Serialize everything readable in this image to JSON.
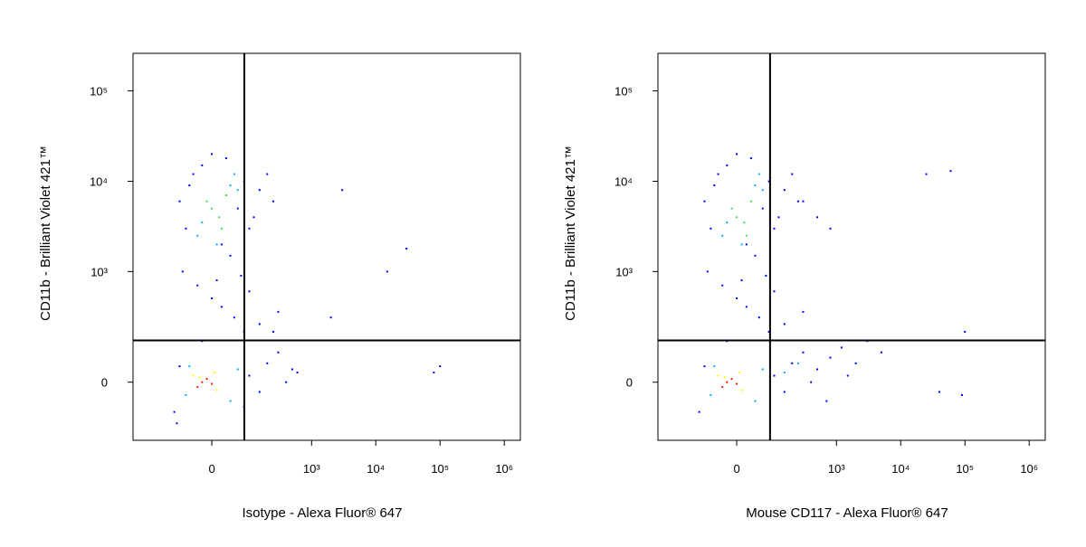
{
  "chart_data": [
    {
      "type": "scatter",
      "xlabel": "Isotype - Alexa Fluor® 647",
      "ylabel": "CD11b - Brilliant Violet 421™",
      "xscale": "biexponential",
      "yscale": "biexponential",
      "xlim": [
        -470,
        1780000
      ],
      "ylim": [
        -250,
        260000
      ],
      "xticks": [
        0,
        {
          "value": 1000,
          "label": "10³"
        },
        {
          "value": 10000,
          "label": "10⁴"
        },
        {
          "value": 100000,
          "label": "10⁵"
        },
        {
          "value": 1000000,
          "label": "10⁶"
        }
      ],
      "yticks": [
        0,
        {
          "value": 1000,
          "label": "10³"
        },
        {
          "value": 10000,
          "label": "10⁴"
        },
        {
          "value": 100000,
          "label": "10⁵"
        }
      ],
      "gates": {
        "x": 81,
        "y": 153
      },
      "series": [
        {
          "color": "#0000ff",
          "x": [
            -80,
            -60,
            -40,
            -20,
            0,
            20,
            40,
            60,
            80,
            100,
            150,
            200,
            -70,
            -50,
            30,
            70,
            120,
            250,
            -30,
            0,
            20,
            50,
            80,
            -20,
            10,
            100,
            150,
            300,
            -100,
            -80,
            100,
            150,
            200,
            300,
            400,
            500,
            80,
            -90,
            250,
            600,
            2000,
            30000,
            80000,
            100000,
            15000,
            3000
          ],
          "y": [
            6000,
            3000,
            12000,
            15000,
            20000,
            2000,
            1500,
            5000,
            10000,
            3000,
            8000,
            12000,
            1000,
            9000,
            18000,
            900,
            4000,
            6000,
            700,
            500,
            400,
            300,
            200,
            150,
            800,
            600,
            250,
            350,
            -100,
            50,
            20,
            -30,
            60,
            100,
            0,
            40,
            -80,
            -150,
            200,
            30,
            300,
            1800,
            30,
            50,
            1000,
            8000
          ]
        },
        {
          "color": "#00b0ff",
          "x": [
            -30,
            40,
            -20,
            50,
            10,
            60,
            -60,
            40,
            -50,
            60
          ],
          "y": [
            2500,
            9000,
            3500,
            12000,
            2000,
            8000,
            -40,
            -60,
            50,
            40
          ]
        },
        {
          "color": "#40e040",
          "x": [
            0,
            15,
            -10,
            20,
            30
          ],
          "y": [
            5000,
            4000,
            6000,
            3000,
            7000
          ]
        },
        {
          "color": "#ffff00",
          "x": [
            -40,
            10,
            -25,
            5
          ],
          "y": [
            20,
            -25,
            15,
            30
          ]
        },
        {
          "color": "#ff2000",
          "x": [
            -20,
            -10,
            -30,
            0
          ],
          "y": [
            0,
            10,
            -15,
            -5
          ]
        }
      ]
    },
    {
      "type": "scatter",
      "xlabel": "Mouse CD117 - Alexa Fluor® 647",
      "ylabel": "CD11b - Brilliant Violet 421™",
      "xscale": "biexponential",
      "yscale": "biexponential",
      "xlim": [
        -470,
        1780000
      ],
      "ylim": [
        -250,
        260000
      ],
      "xticks": [
        0,
        {
          "value": 1000,
          "label": "10³"
        },
        {
          "value": 10000,
          "label": "10⁴"
        },
        {
          "value": 100000,
          "label": "10⁵"
        },
        {
          "value": 1000000,
          "label": "10⁶"
        }
      ],
      "yticks": [
        0,
        {
          "value": 1000,
          "label": "10³"
        },
        {
          "value": 10000,
          "label": "10⁴"
        },
        {
          "value": 100000,
          "label": "10⁵"
        }
      ],
      "gates": {
        "x": 84,
        "y": 153
      },
      "series": [
        {
          "color": "#0000ff",
          "x": [
            -80,
            -60,
            -40,
            -20,
            0,
            20,
            40,
            60,
            80,
            100,
            150,
            200,
            300,
            500,
            800,
            -70,
            -50,
            30,
            70,
            120,
            250,
            -30,
            0,
            20,
            50,
            80,
            -20,
            10,
            100,
            150,
            300,
            -100,
            -80,
            100,
            150,
            200,
            300,
            400,
            500,
            800,
            1200,
            2000,
            3000,
            5000,
            1500,
            700,
            25000,
            60000,
            40000,
            100000,
            90000
          ],
          "y": [
            6000,
            3000,
            12000,
            15000,
            20000,
            2000,
            1500,
            5000,
            10000,
            3000,
            8000,
            12000,
            6000,
            4000,
            3000,
            1000,
            9000,
            18000,
            900,
            4000,
            6000,
            700,
            500,
            400,
            300,
            200,
            150,
            800,
            600,
            250,
            350,
            -100,
            50,
            20,
            -30,
            60,
            100,
            0,
            40,
            80,
            120,
            60,
            150,
            100,
            20,
            -60,
            12000,
            13000,
            -30,
            200,
            -40
          ]
        },
        {
          "color": "#00b0ff",
          "x": [
            -30,
            40,
            -20,
            50,
            10,
            60,
            -60,
            40,
            -50,
            60,
            150,
            250
          ],
          "y": [
            2500,
            9000,
            3500,
            12000,
            2000,
            8000,
            -40,
            -60,
            50,
            40,
            30,
            60
          ]
        },
        {
          "color": "#40e040",
          "x": [
            0,
            15,
            -10,
            20,
            30
          ],
          "y": [
            4000,
            3500,
            5000,
            2500,
            6000
          ]
        },
        {
          "color": "#ffff00",
          "x": [
            -40,
            10,
            -25,
            5
          ],
          "y": [
            20,
            -25,
            15,
            30
          ]
        },
        {
          "color": "#ff2000",
          "x": [
            -20,
            -10,
            -30,
            0
          ],
          "y": [
            0,
            10,
            -15,
            -5
          ]
        }
      ]
    }
  ]
}
